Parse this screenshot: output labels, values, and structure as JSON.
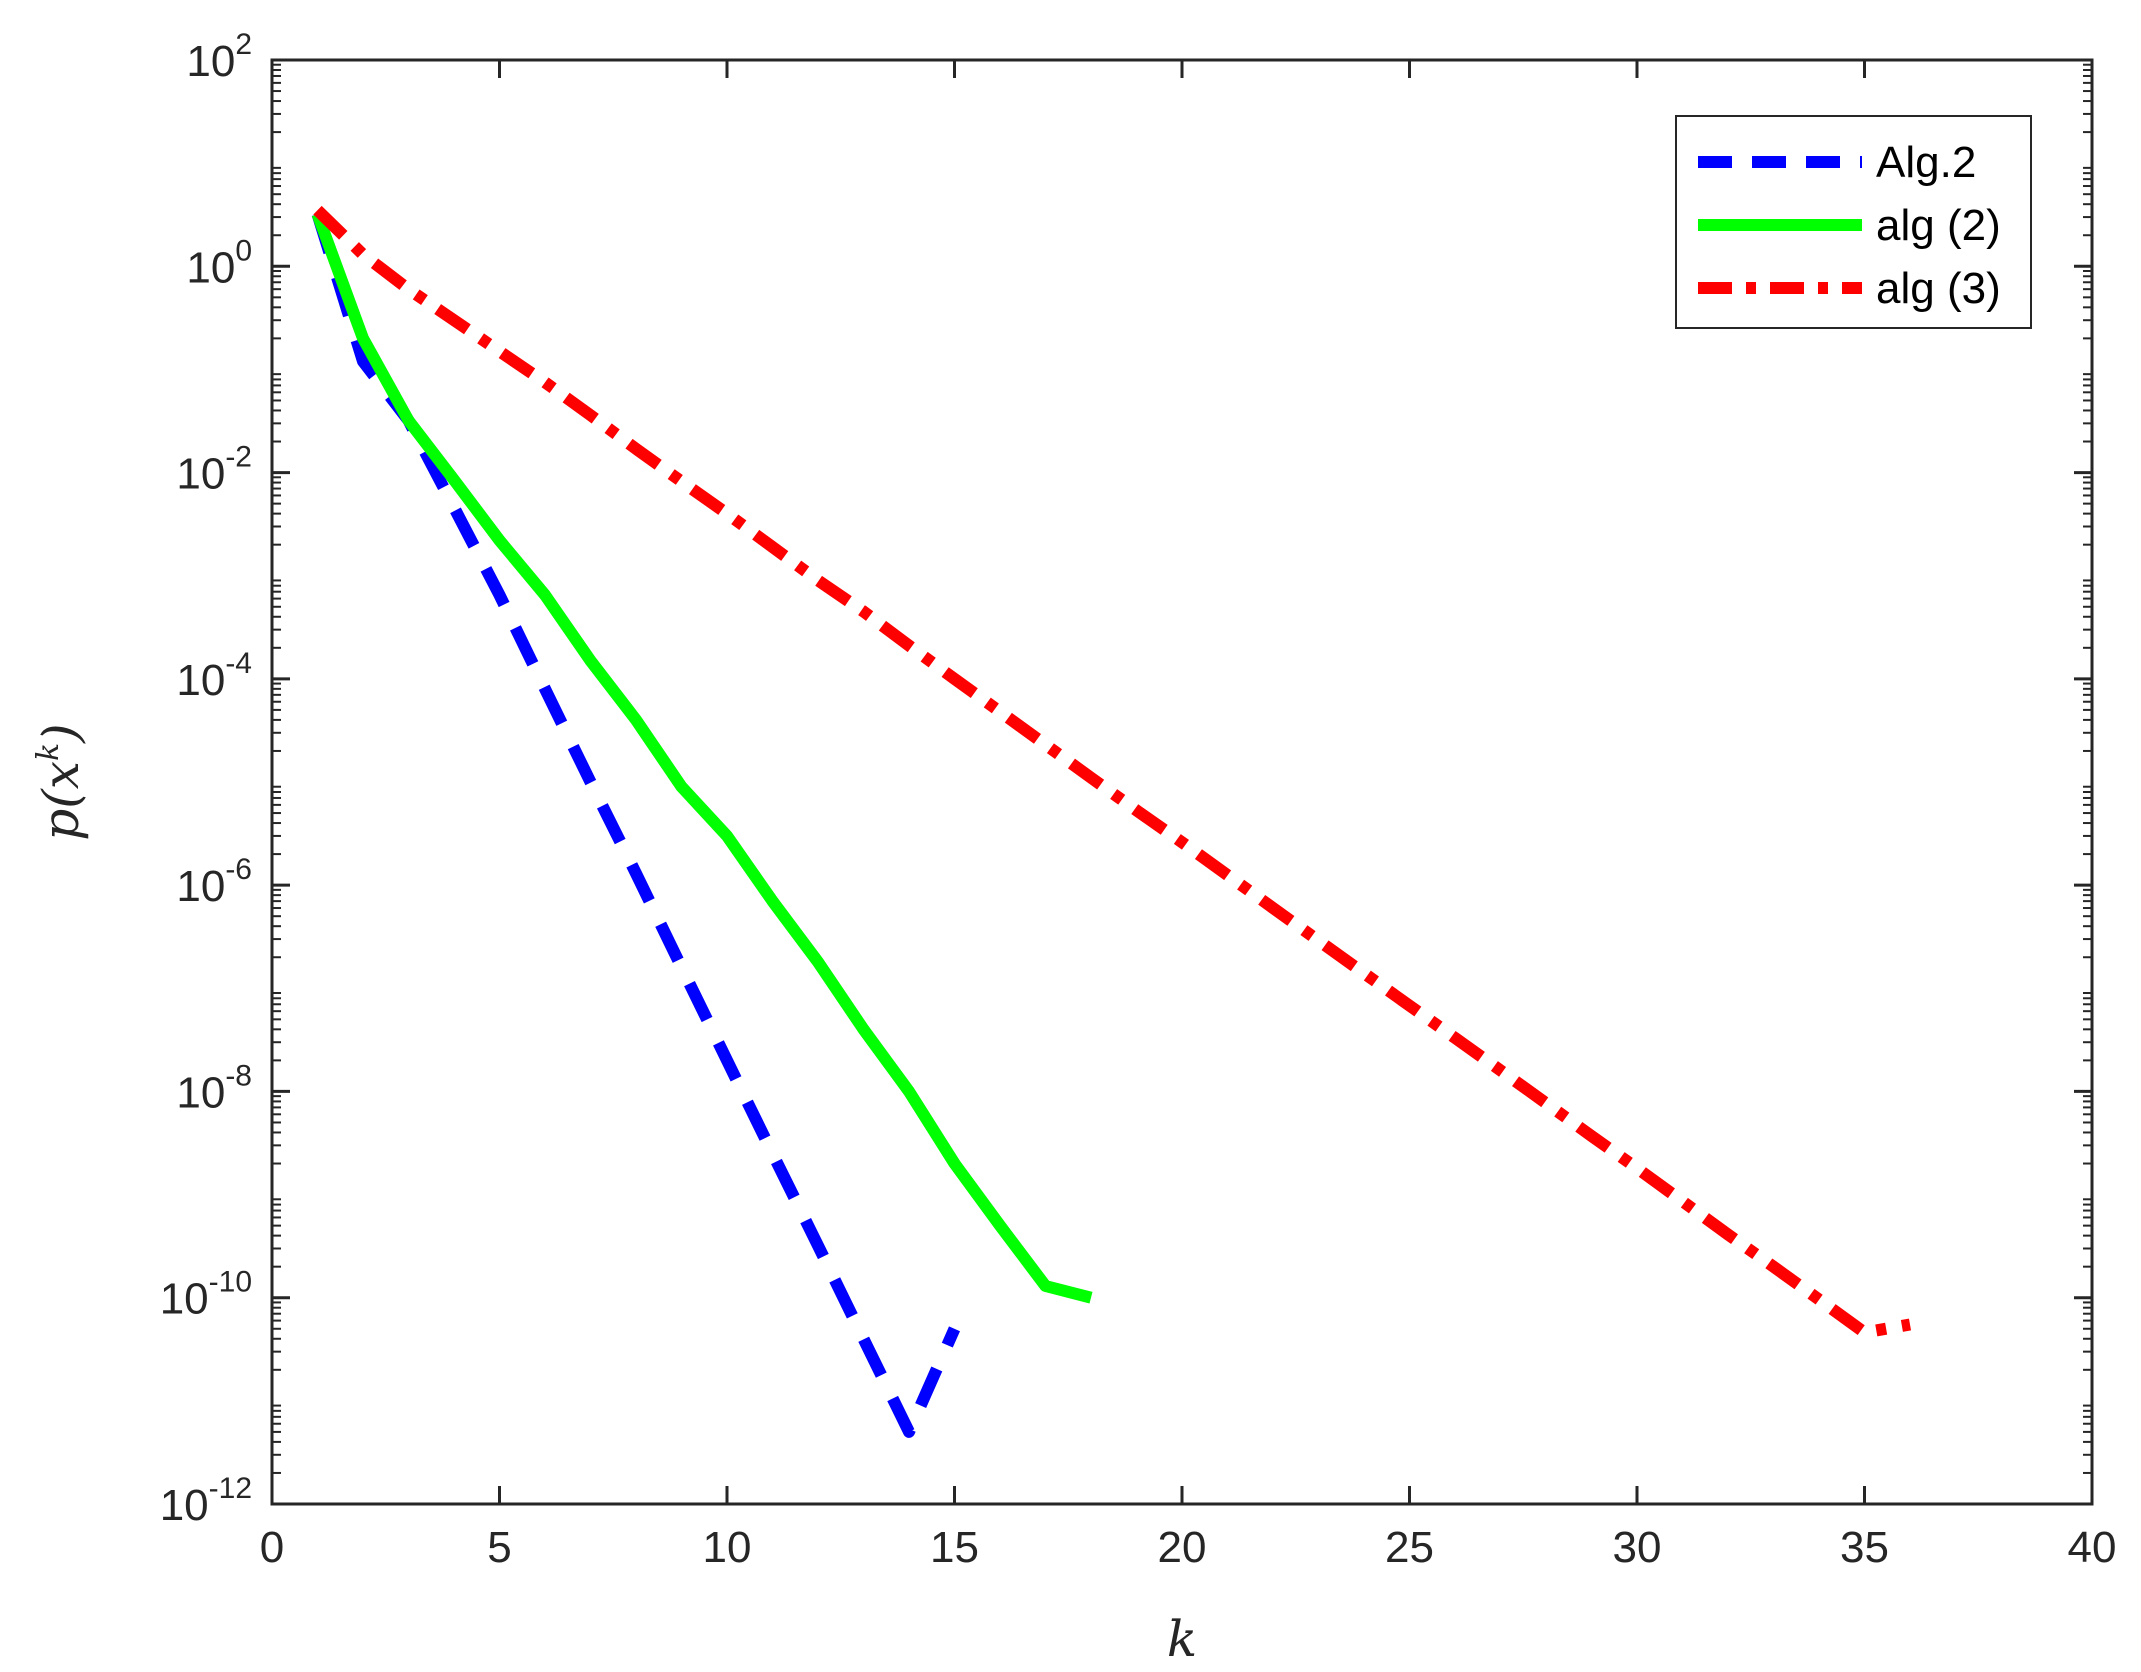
{
  "chart_data": {
    "type": "line",
    "title": "",
    "xlabel": "k",
    "ylabel": "p(x^k)",
    "ylabel_parts": {
      "base": "p(x",
      "sup": "k",
      "close": ")"
    },
    "xlim": [
      0,
      40
    ],
    "ylim": [
      1e-12,
      100
    ],
    "yscale": "log",
    "grid": false,
    "legend_position": "top-right",
    "xticks": [
      0,
      5,
      10,
      15,
      20,
      25,
      30,
      35,
      40
    ],
    "xtick_labels": [
      "0",
      "5",
      "10",
      "15",
      "20",
      "25",
      "30",
      "35",
      "40"
    ],
    "yticks": [
      {
        "value": 1e-12,
        "base": "10",
        "exp": "-12"
      },
      {
        "value": 1e-10,
        "base": "10",
        "exp": "-10"
      },
      {
        "value": 1e-08,
        "base": "10",
        "exp": "-8"
      },
      {
        "value": 1e-06,
        "base": "10",
        "exp": "-6"
      },
      {
        "value": 0.0001,
        "base": "10",
        "exp": "-4"
      },
      {
        "value": 0.01,
        "base": "10",
        "exp": "-2"
      },
      {
        "value": 1,
        "base": "10",
        "exp": "0"
      },
      {
        "value": 100,
        "base": "10",
        "exp": "2"
      }
    ],
    "series": [
      {
        "name": "Alg.2",
        "color": "#0000ff",
        "style": "dashed",
        "x": [
          1,
          2,
          3,
          4,
          5,
          6,
          7,
          8,
          9,
          10,
          11,
          12,
          13,
          14,
          15
        ],
        "y": [
          3.2,
          0.12,
          0.032,
          0.0046,
          0.00065,
          8e-05,
          1e-05,
          1.3e-06,
          1.6e-07,
          2e-08,
          2.5e-09,
          3.2e-10,
          4e-11,
          5e-12,
          5e-11
        ]
      },
      {
        "name": "alg (2)",
        "color": "#00ff00",
        "style": "solid",
        "x": [
          1,
          2,
          3,
          4,
          5,
          6,
          7,
          8,
          9,
          10,
          11,
          12,
          13,
          14,
          15,
          16,
          17,
          18
        ],
        "y": [
          3.2,
          0.2,
          0.032,
          0.0085,
          0.0022,
          0.00065,
          0.00015,
          4e-05,
          9e-06,
          3e-06,
          7e-07,
          1.8e-07,
          4e-08,
          1e-08,
          2e-09,
          5e-10,
          1.3e-10,
          1e-10
        ]
      },
      {
        "name": "alg (3)",
        "color": "#ff0000",
        "style": "dashdot",
        "x": [
          1,
          2,
          3,
          4,
          5,
          6,
          7,
          8,
          9,
          10,
          11,
          12,
          13,
          14,
          15,
          16,
          17,
          18,
          19,
          20,
          21,
          22,
          23,
          24,
          25,
          26,
          27,
          28,
          29,
          30,
          31,
          32,
          33,
          34,
          35,
          36
        ],
        "y": [
          3.5,
          1.3,
          0.6,
          0.3,
          0.15,
          0.075,
          0.036,
          0.017,
          0.0082,
          0.004,
          0.0019,
          0.0009,
          0.00045,
          0.00021,
          0.0001,
          4.8e-05,
          2.3e-05,
          1.1e-05,
          5.3e-06,
          2.6e-06,
          1.25e-06,
          6e-07,
          2.9e-07,
          1.4e-07,
          6.8e-08,
          3.3e-08,
          1.6e-08,
          7.7e-09,
          3.7e-09,
          1.8e-09,
          8.6e-10,
          4.1e-10,
          2e-10,
          9.6e-11,
          4.6e-11,
          5.5e-11
        ]
      }
    ]
  }
}
